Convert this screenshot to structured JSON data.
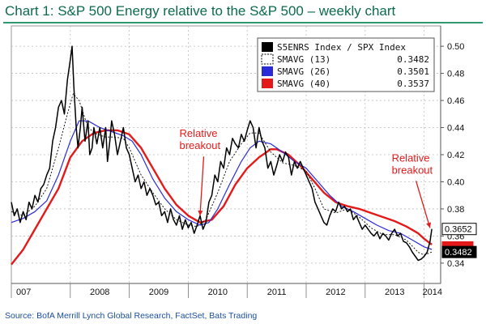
{
  "title": "Chart 1: S&P 500 Energy relative to the S&P 500 – weekly chart",
  "source": "Source: BofA Merrill Lynch Global Research, FactSet, Bats Trading",
  "colors": {
    "title": "#0d6a4f",
    "price": "#000000",
    "sma13": "#000000",
    "sma26": "#2b2bd6",
    "sma40": "#e41a1a",
    "annotation": "#e41a1a",
    "source": "#1a4fa0"
  },
  "chart_data": {
    "type": "line",
    "xlim": [
      2007.0,
      2014.28
    ],
    "ylim": [
      0.325,
      0.515
    ],
    "grid": true,
    "y_ticks": [
      "0.50",
      "0.48",
      "0.46",
      "0.44",
      "0.42",
      "0.40",
      "0.38",
      "0.36",
      "0.34"
    ],
    "y_tick_values": [
      0.5,
      0.48,
      0.46,
      0.44,
      0.42,
      0.4,
      0.38,
      0.36,
      0.34
    ],
    "x_ticks": [
      "007",
      "2008",
      "2009",
      "2010",
      "2011",
      "2012",
      "2013",
      "2014"
    ],
    "x_tick_positions": [
      2007.0,
      2008.0,
      2009.0,
      2010.0,
      2011.0,
      2012.0,
      2013.0,
      2014.0
    ],
    "legend": {
      "position": "top-right",
      "entries": [
        {
          "name": "S5ENRS Index / SPX Index",
          "value": "",
          "style": "price"
        },
        {
          "name": "SMAVG (13)",
          "value": "0.3482",
          "style": "sma13"
        },
        {
          "name": "SMAVG (26)",
          "value": "0.3501",
          "style": "sma26"
        },
        {
          "name": "SMAVG (40)",
          "value": "0.3537",
          "style": "sma40"
        }
      ]
    },
    "last_value_labels": [
      {
        "text": "0.3652",
        "value": 0.3652,
        "style": "price"
      },
      {
        "text": "0.3482",
        "value": 0.3482,
        "style": "sma13"
      }
    ],
    "annotations": [
      {
        "lines": [
          "Relative",
          "breakout"
        ],
        "x": 2009.85,
        "y": 0.433,
        "arrow_to": [
          2010.2,
          0.375
        ]
      },
      {
        "lines": [
          "Relative",
          "breakout"
        ],
        "x": 2013.45,
        "y": 0.415,
        "arrow_to": [
          2014.1,
          0.366
        ]
      }
    ],
    "series": [
      {
        "name": "S5ENRS Index / SPX Index",
        "style": "price",
        "points": [
          [
            2007.0,
            0.385
          ],
          [
            2007.05,
            0.375
          ],
          [
            2007.1,
            0.38
          ],
          [
            2007.15,
            0.37
          ],
          [
            2007.2,
            0.378
          ],
          [
            2007.25,
            0.372
          ],
          [
            2007.3,
            0.385
          ],
          [
            2007.35,
            0.38
          ],
          [
            2007.4,
            0.39
          ],
          [
            2007.45,
            0.385
          ],
          [
            2007.5,
            0.395
          ],
          [
            2007.55,
            0.398
          ],
          [
            2007.6,
            0.405
          ],
          [
            2007.65,
            0.41
          ],
          [
            2007.7,
            0.43
          ],
          [
            2007.75,
            0.44
          ],
          [
            2007.8,
            0.455
          ],
          [
            2007.85,
            0.46
          ],
          [
            2007.9,
            0.45
          ],
          [
            2007.95,
            0.475
          ],
          [
            2008.0,
            0.49
          ],
          [
            2008.03,
            0.5
          ],
          [
            2008.06,
            0.47
          ],
          [
            2008.1,
            0.44
          ],
          [
            2008.13,
            0.425
          ],
          [
            2008.17,
            0.44
          ],
          [
            2008.2,
            0.455
          ],
          [
            2008.25,
            0.43
          ],
          [
            2008.3,
            0.445
          ],
          [
            2008.33,
            0.42
          ],
          [
            2008.37,
            0.425
          ],
          [
            2008.4,
            0.44
          ],
          [
            2008.45,
            0.428
          ],
          [
            2008.5,
            0.44
          ],
          [
            2008.55,
            0.425
          ],
          [
            2008.6,
            0.44
          ],
          [
            2008.63,
            0.415
          ],
          [
            2008.67,
            0.43
          ],
          [
            2008.7,
            0.445
          ],
          [
            2008.75,
            0.435
          ],
          [
            2008.8,
            0.42
          ],
          [
            2008.85,
            0.43
          ],
          [
            2008.9,
            0.44
          ],
          [
            2008.95,
            0.425
          ],
          [
            2009.0,
            0.42
          ],
          [
            2009.05,
            0.41
          ],
          [
            2009.1,
            0.4
          ],
          [
            2009.15,
            0.405
          ],
          [
            2009.2,
            0.395
          ],
          [
            2009.25,
            0.4
          ],
          [
            2009.3,
            0.39
          ],
          [
            2009.35,
            0.395
          ],
          [
            2009.4,
            0.39
          ],
          [
            2009.45,
            0.383
          ],
          [
            2009.5,
            0.385
          ],
          [
            2009.55,
            0.375
          ],
          [
            2009.6,
            0.378
          ],
          [
            2009.65,
            0.37
          ],
          [
            2009.7,
            0.38
          ],
          [
            2009.75,
            0.372
          ],
          [
            2009.8,
            0.368
          ],
          [
            2009.85,
            0.375
          ],
          [
            2009.9,
            0.365
          ],
          [
            2009.95,
            0.372
          ],
          [
            2010.0,
            0.366
          ],
          [
            2010.05,
            0.37
          ],
          [
            2010.1,
            0.362
          ],
          [
            2010.15,
            0.368
          ],
          [
            2010.2,
            0.375
          ],
          [
            2010.25,
            0.365
          ],
          [
            2010.3,
            0.37
          ],
          [
            2010.35,
            0.385
          ],
          [
            2010.4,
            0.39
          ],
          [
            2010.45,
            0.405
          ],
          [
            2010.5,
            0.4
          ],
          [
            2010.55,
            0.415
          ],
          [
            2010.6,
            0.41
          ],
          [
            2010.65,
            0.425
          ],
          [
            2010.7,
            0.42
          ],
          [
            2010.75,
            0.432
          ],
          [
            2010.8,
            0.428
          ],
          [
            2010.85,
            0.425
          ],
          [
            2010.9,
            0.435
          ],
          [
            2010.95,
            0.43
          ],
          [
            2011.0,
            0.438
          ],
          [
            2011.05,
            0.445
          ],
          [
            2011.1,
            0.44
          ],
          [
            2011.15,
            0.425
          ],
          [
            2011.2,
            0.44
          ],
          [
            2011.25,
            0.43
          ],
          [
            2011.3,
            0.425
          ],
          [
            2011.35,
            0.41
          ],
          [
            2011.4,
            0.415
          ],
          [
            2011.45,
            0.405
          ],
          [
            2011.5,
            0.412
          ],
          [
            2011.55,
            0.42
          ],
          [
            2011.6,
            0.415
          ],
          [
            2011.65,
            0.422
          ],
          [
            2011.7,
            0.418
          ],
          [
            2011.75,
            0.405
          ],
          [
            2011.8,
            0.415
          ],
          [
            2011.85,
            0.41
          ],
          [
            2011.9,
            0.415
          ],
          [
            2011.95,
            0.41
          ],
          [
            2012.0,
            0.405
          ],
          [
            2012.05,
            0.4
          ],
          [
            2012.1,
            0.395
          ],
          [
            2012.15,
            0.385
          ],
          [
            2012.2,
            0.38
          ],
          [
            2012.25,
            0.375
          ],
          [
            2012.3,
            0.37
          ],
          [
            2012.35,
            0.368
          ],
          [
            2012.4,
            0.375
          ],
          [
            2012.45,
            0.38
          ],
          [
            2012.5,
            0.378
          ],
          [
            2012.55,
            0.385
          ],
          [
            2012.6,
            0.38
          ],
          [
            2012.65,
            0.382
          ],
          [
            2012.7,
            0.378
          ],
          [
            2012.75,
            0.38
          ],
          [
            2012.8,
            0.372
          ],
          [
            2012.85,
            0.375
          ],
          [
            2012.9,
            0.37
          ],
          [
            2012.95,
            0.365
          ],
          [
            2013.0,
            0.368
          ],
          [
            2013.05,
            0.365
          ],
          [
            2013.1,
            0.362
          ],
          [
            2013.15,
            0.36
          ],
          [
            2013.2,
            0.363
          ],
          [
            2013.25,
            0.358
          ],
          [
            2013.3,
            0.362
          ],
          [
            2013.35,
            0.36
          ],
          [
            2013.4,
            0.357
          ],
          [
            2013.45,
            0.362
          ],
          [
            2013.5,
            0.365
          ],
          [
            2013.55,
            0.36
          ],
          [
            2013.6,
            0.362
          ],
          [
            2013.65,
            0.356
          ],
          [
            2013.7,
            0.355
          ],
          [
            2013.75,
            0.352
          ],
          [
            2013.8,
            0.348
          ],
          [
            2013.85,
            0.345
          ],
          [
            2013.9,
            0.342
          ],
          [
            2013.95,
            0.343
          ],
          [
            2014.0,
            0.345
          ],
          [
            2014.05,
            0.348
          ],
          [
            2014.1,
            0.356
          ],
          [
            2014.13,
            0.3652
          ]
        ]
      },
      {
        "name": "SMAVG (13)",
        "style": "sma13",
        "points": [
          [
            2007.0,
            0.378
          ],
          [
            2007.2,
            0.375
          ],
          [
            2007.4,
            0.382
          ],
          [
            2007.6,
            0.395
          ],
          [
            2007.8,
            0.425
          ],
          [
            2007.95,
            0.45
          ],
          [
            2008.05,
            0.465
          ],
          [
            2008.15,
            0.46
          ],
          [
            2008.3,
            0.44
          ],
          [
            2008.45,
            0.435
          ],
          [
            2008.6,
            0.433
          ],
          [
            2008.75,
            0.433
          ],
          [
            2008.9,
            0.432
          ],
          [
            2009.0,
            0.425
          ],
          [
            2009.2,
            0.405
          ],
          [
            2009.4,
            0.392
          ],
          [
            2009.6,
            0.38
          ],
          [
            2009.8,
            0.372
          ],
          [
            2010.0,
            0.368
          ],
          [
            2010.15,
            0.367
          ],
          [
            2010.3,
            0.372
          ],
          [
            2010.5,
            0.392
          ],
          [
            2010.7,
            0.415
          ],
          [
            2010.9,
            0.428
          ],
          [
            2011.05,
            0.436
          ],
          [
            2011.2,
            0.436
          ],
          [
            2011.4,
            0.422
          ],
          [
            2011.6,
            0.414
          ],
          [
            2011.8,
            0.412
          ],
          [
            2012.0,
            0.408
          ],
          [
            2012.15,
            0.395
          ],
          [
            2012.3,
            0.38
          ],
          [
            2012.5,
            0.377
          ],
          [
            2012.7,
            0.38
          ],
          [
            2012.9,
            0.374
          ],
          [
            2013.1,
            0.366
          ],
          [
            2013.3,
            0.361
          ],
          [
            2013.5,
            0.361
          ],
          [
            2013.7,
            0.357
          ],
          [
            2013.9,
            0.348
          ],
          [
            2014.0,
            0.346
          ],
          [
            2014.13,
            0.3482
          ]
        ]
      },
      {
        "name": "SMAVG (26)",
        "style": "sma26",
        "points": [
          [
            2007.0,
            0.37
          ],
          [
            2007.2,
            0.373
          ],
          [
            2007.4,
            0.378
          ],
          [
            2007.6,
            0.386
          ],
          [
            2007.8,
            0.405
          ],
          [
            2008.0,
            0.43
          ],
          [
            2008.15,
            0.445
          ],
          [
            2008.3,
            0.445
          ],
          [
            2008.5,
            0.44
          ],
          [
            2008.7,
            0.437
          ],
          [
            2008.9,
            0.434
          ],
          [
            2009.05,
            0.43
          ],
          [
            2009.2,
            0.42
          ],
          [
            2009.4,
            0.402
          ],
          [
            2009.6,
            0.388
          ],
          [
            2009.8,
            0.378
          ],
          [
            2010.0,
            0.372
          ],
          [
            2010.2,
            0.368
          ],
          [
            2010.35,
            0.37
          ],
          [
            2010.5,
            0.38
          ],
          [
            2010.7,
            0.398
          ],
          [
            2010.9,
            0.415
          ],
          [
            2011.05,
            0.425
          ],
          [
            2011.2,
            0.43
          ],
          [
            2011.4,
            0.428
          ],
          [
            2011.6,
            0.422
          ],
          [
            2011.8,
            0.415
          ],
          [
            2012.0,
            0.41
          ],
          [
            2012.2,
            0.4
          ],
          [
            2012.4,
            0.39
          ],
          [
            2012.6,
            0.382
          ],
          [
            2012.8,
            0.378
          ],
          [
            2013.0,
            0.373
          ],
          [
            2013.2,
            0.368
          ],
          [
            2013.4,
            0.364
          ],
          [
            2013.6,
            0.362
          ],
          [
            2013.8,
            0.357
          ],
          [
            2014.0,
            0.352
          ],
          [
            2014.13,
            0.3501
          ]
        ]
      },
      {
        "name": "SMAVG (40)",
        "style": "sma40",
        "points": [
          [
            2007.0,
            0.339
          ],
          [
            2007.2,
            0.35
          ],
          [
            2007.4,
            0.365
          ],
          [
            2007.6,
            0.38
          ],
          [
            2007.8,
            0.395
          ],
          [
            2008.0,
            0.418
          ],
          [
            2008.2,
            0.43
          ],
          [
            2008.4,
            0.436
          ],
          [
            2008.6,
            0.438
          ],
          [
            2008.8,
            0.438
          ],
          [
            2009.0,
            0.435
          ],
          [
            2009.2,
            0.425
          ],
          [
            2009.4,
            0.41
          ],
          [
            2009.6,
            0.395
          ],
          [
            2009.8,
            0.383
          ],
          [
            2010.0,
            0.375
          ],
          [
            2010.2,
            0.37
          ],
          [
            2010.4,
            0.372
          ],
          [
            2010.6,
            0.382
          ],
          [
            2010.8,
            0.398
          ],
          [
            2011.0,
            0.41
          ],
          [
            2011.2,
            0.418
          ],
          [
            2011.4,
            0.424
          ],
          [
            2011.5,
            0.424
          ],
          [
            2011.7,
            0.42
          ],
          [
            2011.9,
            0.412
          ],
          [
            2012.1,
            0.402
          ],
          [
            2012.3,
            0.392
          ],
          [
            2012.5,
            0.385
          ],
          [
            2012.7,
            0.382
          ],
          [
            2012.9,
            0.38
          ],
          [
            2013.1,
            0.377
          ],
          [
            2013.3,
            0.374
          ],
          [
            2013.5,
            0.371
          ],
          [
            2013.7,
            0.367
          ],
          [
            2013.9,
            0.362
          ],
          [
            2014.0,
            0.358
          ],
          [
            2014.13,
            0.3537
          ]
        ]
      }
    ]
  }
}
